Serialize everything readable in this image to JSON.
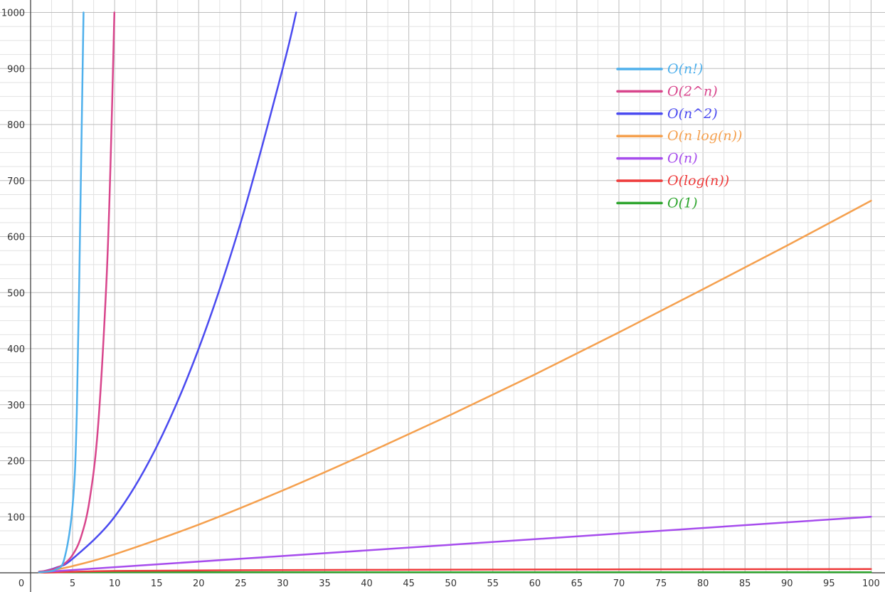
{
  "chart_data": {
    "type": "line",
    "title": "",
    "xlabel": "",
    "ylabel": "",
    "xlim": [
      0,
      100
    ],
    "ylim": [
      0,
      1000
    ],
    "x_ticks": [
      0,
      5,
      10,
      15,
      20,
      25,
      30,
      35,
      40,
      45,
      50,
      55,
      60,
      65,
      70,
      75,
      80,
      85,
      90,
      95,
      100
    ],
    "y_ticks": [
      100,
      200,
      300,
      400,
      500,
      600,
      700,
      800,
      900,
      1000
    ],
    "grid": true,
    "legend_position": "top-right",
    "series": [
      {
        "name": "O(n!)",
        "color": "#4fb0ec",
        "x": [
          1,
          2,
          3,
          4,
          5,
          5.5,
          6,
          6.3
        ],
        "y": [
          1,
          2,
          6,
          24,
          120,
          287,
          720,
          1000
        ]
      },
      {
        "name": "O(2^n)",
        "color": "#d8458c",
        "x": [
          1,
          2,
          3,
          4,
          5,
          6,
          7,
          8,
          9,
          9.5,
          9.97
        ],
        "y": [
          2,
          4,
          8,
          16,
          32,
          64,
          128,
          256,
          512,
          724,
          1000
        ]
      },
      {
        "name": "O(n^2)",
        "color": "#4a4af0",
        "x": [
          1,
          3,
          5,
          10,
          15,
          20,
          25,
          30,
          31.6
        ],
        "y": [
          1,
          9,
          25,
          100,
          225,
          400,
          625,
          900,
          1000
        ]
      },
      {
        "name": "O(n log(n))",
        "color": "#f5a04e",
        "x": [
          1,
          5,
          10,
          20,
          30,
          40,
          50,
          60,
          70,
          80,
          90,
          100
        ],
        "y": [
          0,
          12,
          33,
          86,
          147,
          213,
          282,
          354,
          429,
          506,
          584,
          664
        ]
      },
      {
        "name": "O(n)",
        "color": "#a64ced",
        "x": [
          1,
          100
        ],
        "y": [
          1,
          100
        ]
      },
      {
        "name": "O(log(n))",
        "color": "#ee3a3a",
        "x": [
          1,
          10,
          25,
          50,
          75,
          100
        ],
        "y": [
          0,
          3.3,
          4.6,
          5.6,
          6.2,
          6.6
        ]
      },
      {
        "name": "O(1)",
        "color": "#2ea52e",
        "x": [
          1,
          100
        ],
        "y": [
          1,
          1
        ]
      }
    ]
  }
}
